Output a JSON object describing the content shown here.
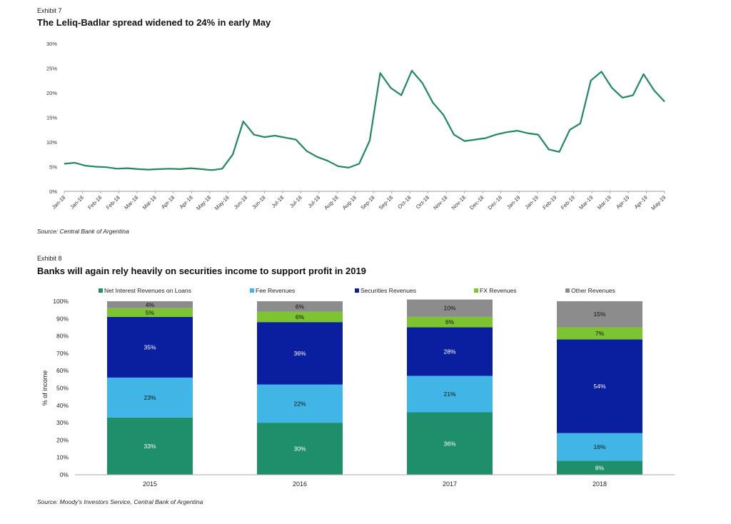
{
  "exhibit7": {
    "exhibit_label": "Exhibit 7",
    "title": "The Leliq-Badlar spread widened to 24% in early May",
    "source": "Source: Central Bank of Argentina"
  },
  "exhibit8": {
    "exhibit_label": "Exhibit 8",
    "title": "Banks will again rely heavily on securities income to support profit in 2019",
    "source": "Source: Moody's Investors Service, Central Bank of Argentina"
  },
  "chart_data": [
    {
      "type": "line",
      "title": "The Leliq-Badlar spread widened to 24% in early May",
      "xlabel": "",
      "ylabel": "",
      "ylim": [
        0,
        30
      ],
      "y_ticks": [
        "0%",
        "5%",
        "10%",
        "15%",
        "20%",
        "25%",
        "30%"
      ],
      "x_tick_labels": [
        "Jan-18",
        "Jan-18",
        "Feb-18",
        "Feb-18",
        "Mar-18",
        "Mar-18",
        "Apr-18",
        "Apr-18",
        "May-18",
        "May-18",
        "Jun-18",
        "Jun-18",
        "Jul-18",
        "Jul-18",
        "Jul-18",
        "Aug-18",
        "Aug-18",
        "Sep-18",
        "Sep-18",
        "Oct-18",
        "Oct-18",
        "Nov-18",
        "Nov-18",
        "Dec-18",
        "Dec-18",
        "Jan-19",
        "Jan-19",
        "Feb-19",
        "Feb-19",
        "Mar-19",
        "Mar-19",
        "Apr-19",
        "Apr-19",
        "May-19"
      ],
      "grid": false,
      "line_color": "#1e8a5e",
      "series": [
        {
          "values": [
            5.6,
            5.8,
            5.2,
            5.0,
            4.9,
            4.6,
            4.7,
            4.5,
            4.4,
            4.5,
            4.6,
            4.5,
            4.7,
            4.5,
            4.3,
            4.6,
            7.5,
            14.2,
            11.5,
            11.0,
            11.3,
            10.9,
            10.5,
            8.2,
            7.0,
            6.2,
            5.1,
            4.8,
            5.6,
            10.3,
            24.0,
            21.0,
            19.5,
            24.5,
            22.0,
            18.0,
            15.5,
            11.5,
            10.2,
            10.5,
            10.8,
            11.5,
            12.0,
            12.3,
            11.8,
            11.5,
            8.5,
            8.0,
            12.5,
            13.8,
            22.5,
            24.3,
            21.0,
            19.0,
            19.5,
            23.8,
            20.5,
            18.2
          ]
        }
      ]
    },
    {
      "type": "bar",
      "stacked": true,
      "title": "Banks will again rely heavily on securities income to support profit in 2019",
      "ylabel": "% of income",
      "ylim": [
        0,
        100
      ],
      "y_ticks": [
        "0%",
        "10%",
        "20%",
        "30%",
        "40%",
        "50%",
        "60%",
        "70%",
        "80%",
        "90%",
        "100%"
      ],
      "categories": [
        "2015",
        "2016",
        "2017",
        "2018"
      ],
      "legend_position": "top",
      "series": [
        {
          "name": "Net Interest Revenues on Loans",
          "color": "#1e8f6a",
          "values": [
            33,
            30,
            36,
            8
          ],
          "labels": [
            "33%",
            "30%",
            "36%",
            "8%"
          ]
        },
        {
          "name": "Fee Revenues",
          "color": "#41b6e6",
          "values": [
            23,
            22,
            21,
            16
          ],
          "labels": [
            "23%",
            "22%",
            "21%",
            "16%"
          ]
        },
        {
          "name": "Securities Revenues",
          "color": "#0a1fa0",
          "values": [
            35,
            36,
            28,
            54
          ],
          "labels": [
            "35%",
            "36%",
            "28%",
            "54%"
          ]
        },
        {
          "name": "FX Revenues",
          "color": "#7cc531",
          "values": [
            5,
            6,
            6,
            7
          ],
          "labels": [
            "5%",
            "6%",
            "6%",
            "7%"
          ]
        },
        {
          "name": "Other Revenues",
          "color": "#8c8c8c",
          "values": [
            4,
            6,
            10,
            15
          ],
          "labels": [
            "4%",
            "6%",
            "10%",
            "15%"
          ]
        }
      ]
    }
  ]
}
